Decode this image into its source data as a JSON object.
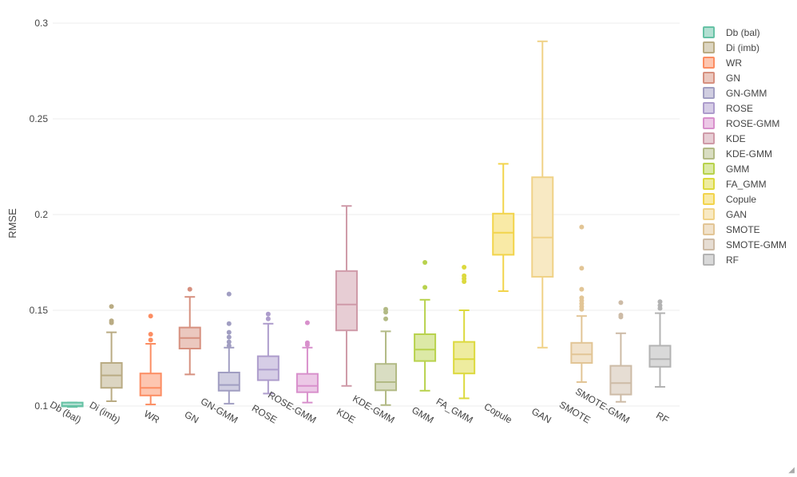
{
  "chart_data": {
    "type": "box",
    "title": "",
    "xlabel": "",
    "ylabel": "RMSE",
    "ylim": [
      0.095,
      0.303
    ],
    "yticks": [
      0.1,
      0.15,
      0.2,
      0.25,
      0.3
    ],
    "ytick_labels": [
      "0.1",
      "0.15",
      "0.2",
      "0.25",
      "0.3"
    ],
    "grid": "horizontal",
    "legend_position": "right",
    "series": [
      {
        "name": "Db (bal)",
        "color": "#66c2a5",
        "fill": "#b2e0d2",
        "min": 0.0995,
        "q1": 0.0998,
        "median": 0.1,
        "q3": 0.1018,
        "max": 0.1018,
        "outliers": []
      },
      {
        "name": "Di (imb)",
        "color": "#b9ab83",
        "fill": "#dcd5c1",
        "min": 0.1025,
        "q1": 0.1095,
        "median": 0.116,
        "q3": 0.1225,
        "max": 0.1385,
        "outliers": [
          0.1435,
          0.1445,
          0.152
        ]
      },
      {
        "name": "WR",
        "color": "#fc8d62",
        "fill": "#fdc6b0",
        "min": 0.1008,
        "q1": 0.1055,
        "median": 0.1095,
        "q3": 0.117,
        "max": 0.1325,
        "outliers": [
          0.1345,
          0.1375,
          0.147
        ]
      },
      {
        "name": "GN",
        "color": "#d6907f",
        "fill": "#ebc8bf",
        "min": 0.1165,
        "q1": 0.13,
        "median": 0.1355,
        "q3": 0.141,
        "max": 0.157,
        "outliers": [
          0.161
        ]
      },
      {
        "name": "GN-GMM",
        "color": "#a19ec2",
        "fill": "#d0cee1",
        "min": 0.1012,
        "q1": 0.108,
        "median": 0.111,
        "q3": 0.1175,
        "max": 0.1305,
        "outliers": [
          0.1315,
          0.1335,
          0.136,
          0.1385,
          0.143,
          0.1585
        ]
      },
      {
        "name": "ROSE",
        "color": "#ad9ccc",
        "fill": "#d6cde6",
        "min": 0.1065,
        "q1": 0.1135,
        "median": 0.119,
        "q3": 0.126,
        "max": 0.143,
        "outliers": [
          0.1455,
          0.148
        ]
      },
      {
        "name": "ROSE-GMM",
        "color": "#d890cc",
        "fill": "#ecc8e6",
        "min": 0.1018,
        "q1": 0.1072,
        "median": 0.1105,
        "q3": 0.1168,
        "max": 0.1305,
        "outliers": [
          0.132,
          0.133,
          0.1435
        ]
      },
      {
        "name": "KDE",
        "color": "#cf9aa8",
        "fill": "#e7cdd4",
        "min": 0.1105,
        "q1": 0.1395,
        "median": 0.153,
        "q3": 0.1705,
        "max": 0.2045,
        "outliers": []
      },
      {
        "name": "KDE-GMM",
        "color": "#b2ba85",
        "fill": "#d9ddc2",
        "min": 0.1005,
        "q1": 0.1082,
        "median": 0.1125,
        "q3": 0.122,
        "max": 0.139,
        "outliers": [
          0.1455,
          0.149,
          0.1505
        ]
      },
      {
        "name": "GMM",
        "color": "#b8d24d",
        "fill": "#dce9a6",
        "min": 0.108,
        "q1": 0.1235,
        "median": 0.1295,
        "q3": 0.1375,
        "max": 0.1555,
        "outliers": [
          0.162,
          0.175
        ]
      },
      {
        "name": "FA_GMM",
        "color": "#dcd93e",
        "fill": "#eeec9f",
        "min": 0.104,
        "q1": 0.117,
        "median": 0.1245,
        "q3": 0.1335,
        "max": 0.15,
        "outliers": [
          0.165,
          0.1665,
          0.168,
          0.1725
        ]
      },
      {
        "name": "Copule",
        "color": "#f2d44c",
        "fill": "#f9eaa6",
        "min": 0.16,
        "q1": 0.179,
        "median": 0.1905,
        "q3": 0.2005,
        "max": 0.2265,
        "outliers": []
      },
      {
        "name": "GAN",
        "color": "#f0d287",
        "fill": "#f8e9c3",
        "min": 0.1305,
        "q1": 0.1675,
        "median": 0.188,
        "q3": 0.2195,
        "max": 0.2905,
        "outliers": []
      },
      {
        "name": "SMOTE",
        "color": "#e2c596",
        "fill": "#f1e2cb",
        "min": 0.1125,
        "q1": 0.1225,
        "median": 0.127,
        "q3": 0.133,
        "max": 0.147,
        "outliers": [
          0.1505,
          0.152,
          0.1535,
          0.155,
          0.1565,
          0.161,
          0.172,
          0.1935
        ]
      },
      {
        "name": "SMOTE-GMM",
        "color": "#cdbba6",
        "fill": "#e6ddd3",
        "min": 0.1022,
        "q1": 0.106,
        "median": 0.112,
        "q3": 0.121,
        "max": 0.138,
        "outliers": [
          0.1465,
          0.1475,
          0.154
        ]
      },
      {
        "name": "RF",
        "color": "#b3b3b3",
        "fill": "#d9d9d9",
        "min": 0.11,
        "q1": 0.1205,
        "median": 0.1245,
        "q3": 0.1315,
        "max": 0.1485,
        "outliers": [
          0.151,
          0.1525,
          0.1545
        ]
      }
    ]
  }
}
